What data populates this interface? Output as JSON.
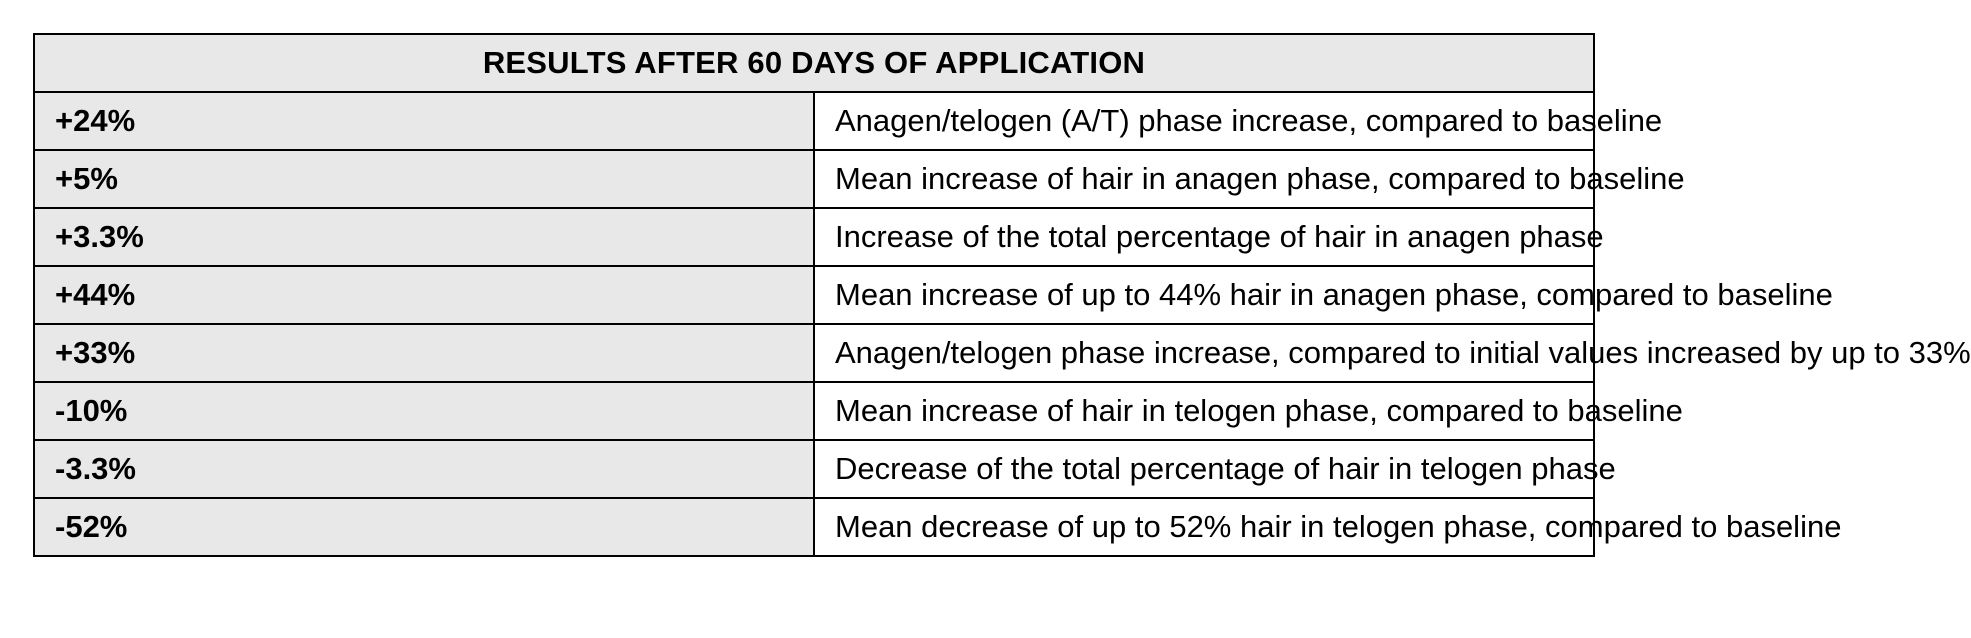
{
  "table": {
    "title": "RESULTS AFTER 60 DAYS OF APPLICATION",
    "rows": [
      {
        "value": "+24%",
        "description": "Anagen/telogen (A/T) phase increase, compared to baseline"
      },
      {
        "value": "+5%",
        "description": "Mean increase of hair in anagen phase, compared to baseline"
      },
      {
        "value": "+3.3%",
        "description": "Increase of the total percentage of hair in anagen phase"
      },
      {
        "value": "+44%",
        "description": "Mean increase of up to 44% hair in anagen phase, compared to baseline"
      },
      {
        "value": "+33%",
        "description": "Anagen/telogen phase increase, compared to initial values increased by up to 33%"
      },
      {
        "value": "-10%",
        "description": "Mean increase of hair in telogen phase, compared to baseline"
      },
      {
        "value": "-3.3%",
        "description": "Decrease of the total percentage of hair in telogen phase"
      },
      {
        "value": "-52%",
        "description": "Mean decrease of up to 52% hair in telogen phase, compared to baseline"
      }
    ]
  }
}
